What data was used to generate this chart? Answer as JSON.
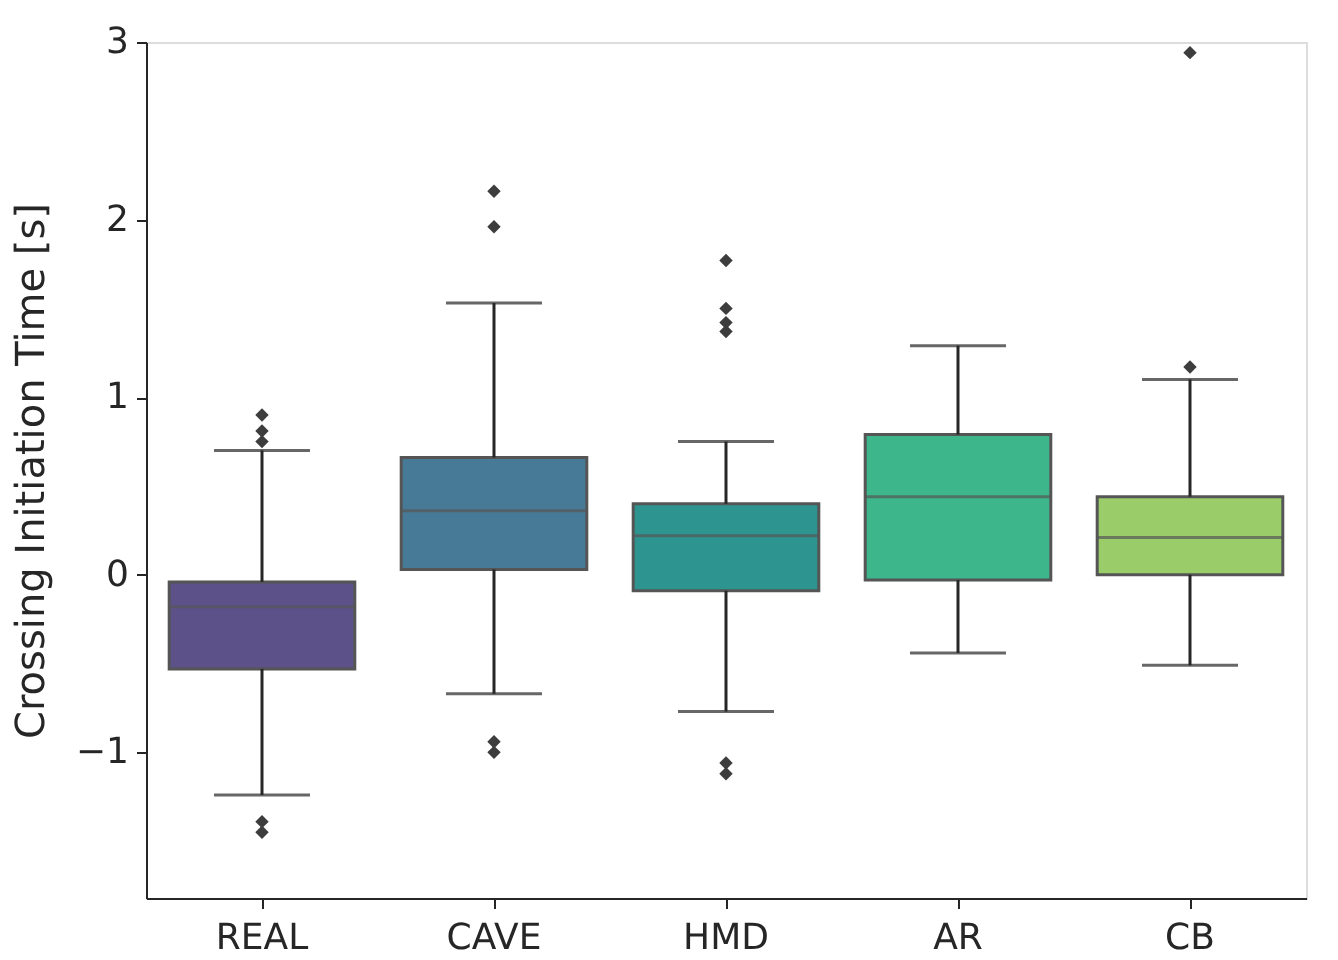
{
  "chart_data": {
    "type": "box",
    "ylabel": "Crossing Initiation Time [s]",
    "categories": [
      "REAL",
      "CAVE",
      "HMD",
      "AR",
      "CB"
    ],
    "colors": [
      "#5c5189",
      "#467a97",
      "#2e9490",
      "#3db68c",
      "#9acd6a"
    ],
    "boxes": [
      {
        "low": -1.24,
        "q1": -0.53,
        "median": -0.18,
        "q3": -0.04,
        "high": 0.7,
        "outliers": [
          0.9,
          0.81,
          0.75,
          -1.39,
          -1.45
        ]
      },
      {
        "low": -0.67,
        "q1": 0.03,
        "median": 0.36,
        "q3": 0.66,
        "high": 1.53,
        "outliers": [
          2.16,
          1.96,
          -0.94,
          -1.0
        ]
      },
      {
        "low": -0.77,
        "q1": -0.09,
        "median": 0.22,
        "q3": 0.4,
        "high": 0.75,
        "outliers": [
          1.77,
          1.5,
          1.42,
          1.37,
          -1.06,
          -1.12
        ]
      },
      {
        "low": -0.44,
        "q1": -0.03,
        "median": 0.44,
        "q3": 0.79,
        "high": 1.29
      },
      {
        "low": -0.51,
        "q1": 0.0,
        "median": 0.21,
        "q3": 0.44,
        "high": 1.1,
        "outliers": [
          2.94,
          1.17
        ]
      }
    ],
    "ylim": [
      -1.82,
      3
    ],
    "yticks": [
      -1,
      0,
      1,
      2,
      3
    ],
    "grid": false,
    "legend": false,
    "marker": "diamond"
  }
}
